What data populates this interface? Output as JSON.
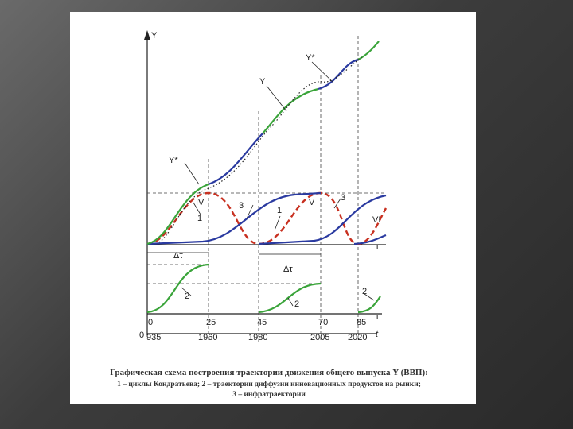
{
  "labels": {
    "y_axis": "Y",
    "y_star_1": "Y*",
    "y": "Y",
    "y_star_2": "Y*",
    "iv": "IV",
    "v": "V",
    "vi": "VI",
    "one_a": "1",
    "one_b": "1",
    "three_a": "3",
    "three_b": "3",
    "tau": "τ",
    "delta_1": "Δτ",
    "delta_2": "Δτ",
    "two_a": "2",
    "two_b": "2",
    "two_c": "2",
    "t": "τ",
    "t_year": "t",
    "origin": "0"
  },
  "ticks": [
    "0",
    "25",
    "45",
    "70",
    "85"
  ],
  "years": [
    "935",
    "1960",
    "1980",
    "2005",
    "2020"
  ],
  "caption": [
    "Графическая схема построения траектории движения общего выпуска Y (ВВП):",
    "1 – циклы Кондратьева; 2 – траектории диффузии инновационных продуктов на рынки;",
    "3 – инфратраектории"
  ]
}
